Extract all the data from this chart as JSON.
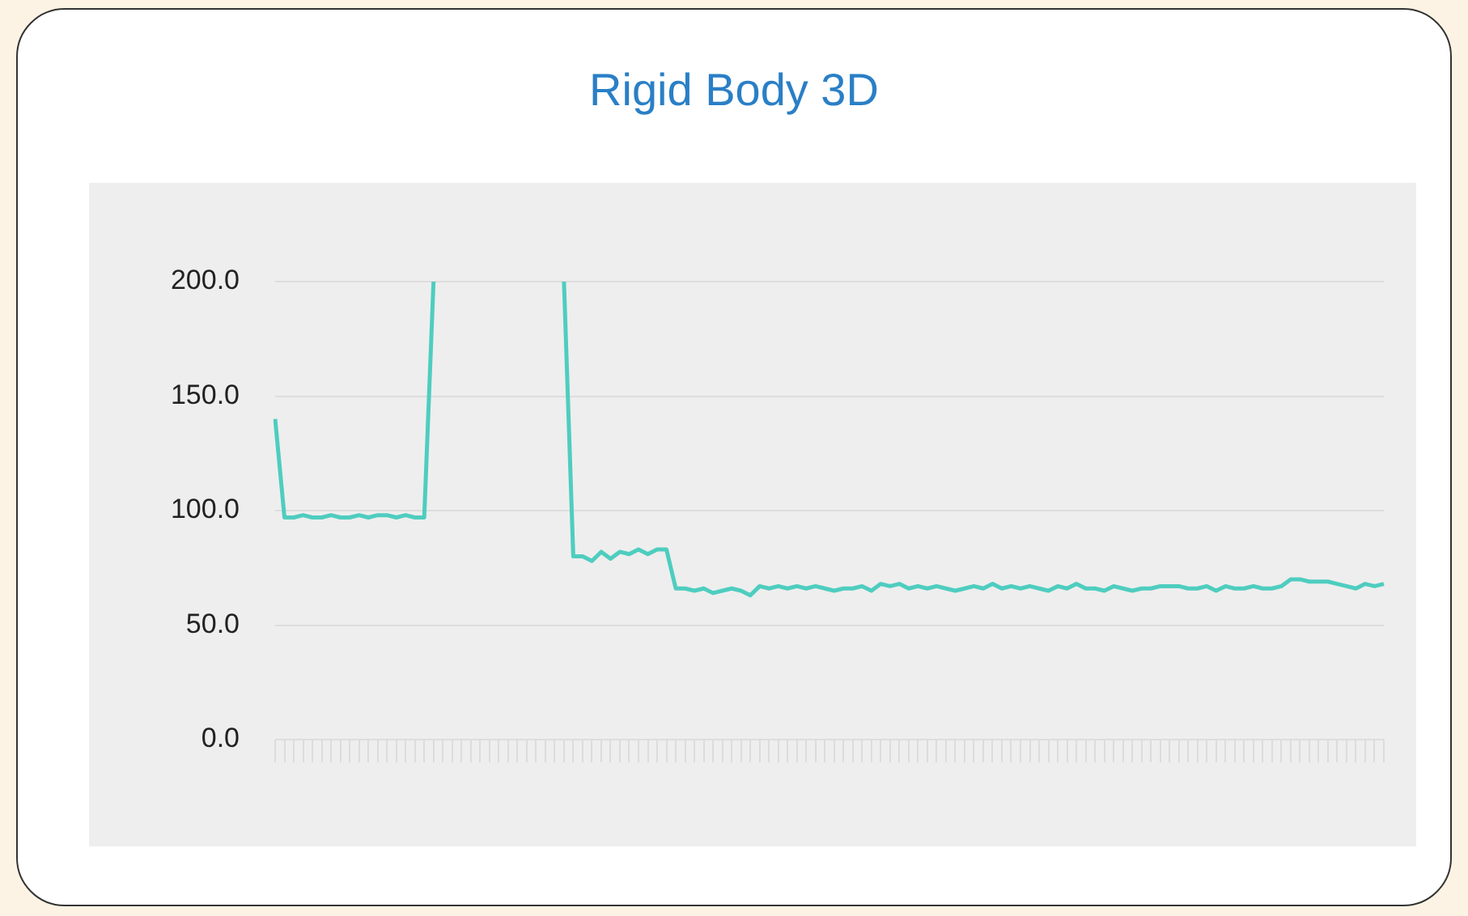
{
  "chart_data": {
    "type": "line",
    "title": "Rigid Body 3D",
    "categories": [
      null,
      null,
      null,
      null,
      null,
      null,
      null,
      null,
      null,
      null,
      null,
      null,
      null,
      null,
      null,
      null,
      null,
      null,
      null,
      null,
      null,
      null,
      null,
      null,
      null,
      null,
      null,
      null,
      null,
      null,
      null,
      null,
      null,
      null,
      null,
      null,
      null,
      null,
      null,
      null,
      null,
      null,
      null,
      null,
      null,
      null,
      null,
      null,
      null,
      null,
      null,
      null,
      null,
      null,
      null,
      null,
      null,
      null,
      null,
      null,
      null,
      null,
      null,
      null,
      null,
      null,
      null,
      null,
      null,
      null,
      null,
      null,
      null,
      null,
      null,
      null,
      null,
      null,
      null,
      null,
      null,
      null,
      null,
      null,
      null,
      null,
      null,
      null,
      null,
      null,
      null,
      null,
      null,
      null,
      null,
      null,
      null,
      null,
      null,
      null,
      null,
      null,
      null,
      null,
      null,
      null,
      null,
      null,
      null,
      null,
      null,
      null,
      null,
      null,
      null,
      null,
      null,
      null,
      null,
      null
    ],
    "series": [
      {
        "color": "#4ecdbf",
        "values": [
          140,
          97,
          97,
          98,
          97,
          97,
          98,
          97,
          97,
          98,
          97,
          98,
          98,
          97,
          98,
          97,
          97,
          200,
          null,
          null,
          null,
          null,
          null,
          null,
          null,
          null,
          null,
          null,
          null,
          null,
          null,
          null,
          null,
          null,
          null,
          null,
          null,
          null,
          null,
          null,
          null,
          null,
          null,
          null,
          null,
          null,
          null,
          null,
          null,
          null,
          null,
          null,
          null,
          null,
          null,
          null,
          null,
          null,
          null,
          null,
          null,
          null,
          null,
          null,
          null,
          null,
          null,
          null,
          null,
          null,
          null,
          null,
          null,
          null,
          null,
          null,
          null,
          null,
          null,
          null,
          null,
          null,
          null,
          null,
          null,
          null,
          null,
          null,
          null,
          null,
          null,
          null,
          null,
          null,
          null,
          null,
          null,
          null,
          null,
          null,
          null,
          null,
          null,
          null,
          null,
          null,
          null,
          null,
          null,
          null,
          null,
          null,
          null,
          null,
          null,
          null,
          null,
          null,
          null,
          null
        ]
      },
      {
        "color": "#4ecdbf",
        "values": [
          null,
          null,
          null,
          null,
          null,
          null,
          null,
          null,
          null,
          null,
          null,
          null,
          null,
          null,
          null,
          null,
          null,
          null,
          null,
          null,
          null,
          null,
          null,
          null,
          null,
          null,
          null,
          null,
          null,
          null,
          null,
          200,
          80,
          80,
          78,
          82,
          79,
          82,
          81,
          83,
          81,
          83,
          83,
          66,
          66,
          65,
          66,
          64,
          65,
          66,
          65,
          63,
          67,
          66,
          67,
          66,
          67,
          66,
          67,
          66,
          65,
          66,
          66,
          67,
          65,
          68,
          67,
          68,
          66,
          67,
          66,
          67,
          66,
          65,
          66,
          67,
          66,
          68,
          66,
          67,
          66,
          67,
          66,
          65,
          67,
          66,
          68,
          66,
          66,
          65,
          67,
          66,
          65,
          66,
          66,
          67,
          67,
          67,
          66,
          66,
          67,
          65,
          67,
          66,
          66,
          67,
          66,
          66,
          67,
          70,
          70,
          69,
          69,
          69,
          68,
          67,
          66,
          68,
          67,
          68
        ]
      }
    ],
    "ylim": [
      0,
      200
    ],
    "yticks": [
      {
        "value": 0,
        "label": "0.0"
      },
      {
        "value": 50,
        "label": "50.0"
      },
      {
        "value": 100,
        "label": "100.0"
      },
      {
        "value": 150,
        "label": "150.0"
      },
      {
        "value": 200,
        "label": "200.0"
      }
    ],
    "grid": "y",
    "legend": false,
    "tick_labels": "y",
    "marker": "none",
    "line_style": "solid"
  }
}
